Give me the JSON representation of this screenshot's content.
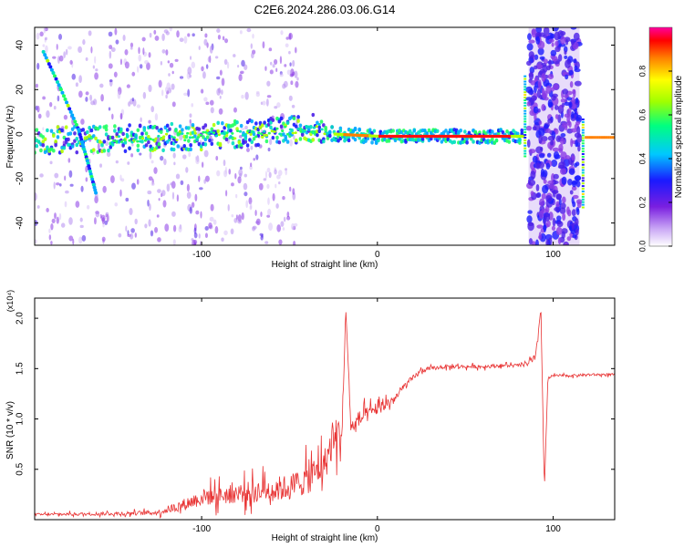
{
  "title": "C2E6.2024.286.03.06.G14",
  "chart_data": [
    {
      "type": "heatmap",
      "xlabel": "Height of straight line (km)",
      "ylabel": "Frequency (Hz)",
      "xlim": [
        -195,
        135
      ],
      "ylim": [
        -50,
        48
      ],
      "xticks": [
        -100,
        0,
        100
      ],
      "yticks": [
        -40,
        -20,
        0,
        20,
        40
      ],
      "colorbar": {
        "label": "Normalized spectral amplitude",
        "range": [
          0.0,
          1.0
        ],
        "ticks": [
          0.0,
          0.2,
          0.4,
          0.6,
          0.8
        ],
        "tick_labels": [
          "0.0",
          "0.2",
          "0.4",
          "0.6",
          "0.8"
        ]
      },
      "features": [
        {
          "name": "main trace",
          "x": [
            -195,
            -150,
            -100,
            -60,
            -35,
            -25,
            0,
            50,
            75,
            83
          ],
          "y": [
            -3,
            -2,
            -1,
            1,
            3,
            0,
            -1,
            -1,
            -1,
            -1
          ]
        },
        {
          "name": "descending trace",
          "x": [
            -190,
            -180,
            -170,
            -165,
            -160
          ],
          "y": [
            37,
            20,
            2,
            -12,
            -27
          ]
        },
        {
          "name": "noise band",
          "x_range": [
            86,
            115
          ],
          "y_range": [
            -50,
            48
          ]
        }
      ]
    },
    {
      "type": "line",
      "xlabel": "Height of straight line (km)",
      "ylabel": "SNR (10 * v/v)",
      "multiplier": "(x10⁴)",
      "xlim": [
        -195,
        135
      ],
      "ylim": [
        0.0,
        2.2
      ],
      "xticks": [
        -100,
        0,
        100
      ],
      "yticks": [
        0.5,
        1.0,
        1.5,
        2.0
      ],
      "ytick_labels": [
        "0.5",
        "1.0",
        "1.5",
        "2.0"
      ],
      "color": "#e83232",
      "x": [
        -195,
        -150,
        -125,
        -110,
        -100,
        -80,
        -60,
        -50,
        -40,
        -30,
        -25,
        -20,
        -18,
        -15,
        -10,
        -5,
        0,
        5,
        10,
        15,
        20,
        25,
        30,
        40,
        50,
        60,
        70,
        80,
        85,
        90,
        93,
        95,
        97,
        100,
        110,
        120,
        130,
        135
      ],
      "y": [
        0.05,
        0.06,
        0.07,
        0.15,
        0.22,
        0.26,
        0.3,
        0.32,
        0.4,
        0.55,
        0.8,
        0.9,
        2.1,
        0.9,
        1.0,
        1.05,
        1.1,
        1.15,
        1.2,
        1.32,
        1.4,
        1.48,
        1.5,
        1.52,
        1.52,
        1.52,
        1.53,
        1.53,
        1.55,
        1.6,
        2.1,
        0.3,
        1.4,
        1.43,
        1.43,
        1.44,
        1.44,
        1.44
      ],
      "noise": [
        0.02,
        0.03,
        0.04,
        0.1,
        0.14,
        0.16,
        0.2,
        0.22,
        0.25,
        0.28,
        0.3,
        0.3,
        0,
        0.15,
        0.15,
        0.12,
        0.1,
        0.1,
        0.08,
        0.06,
        0.05,
        0.04,
        0.03,
        0.03,
        0.03,
        0.03,
        0.03,
        0.03,
        0.05,
        0.08,
        0,
        0,
        0.03,
        0.02,
        0.02,
        0.02,
        0.02,
        0.02
      ]
    }
  ]
}
